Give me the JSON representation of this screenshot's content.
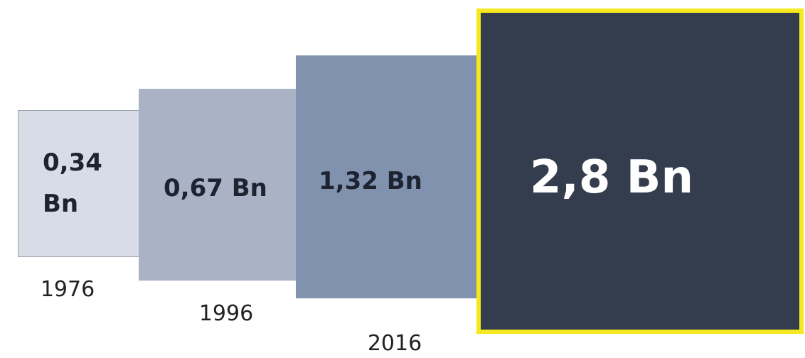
{
  "items": [
    {
      "label": "0,34 Bn",
      "year": "1976"
    },
    {
      "label": "0,67 Bn",
      "year": "1996"
    },
    {
      "label": "1,32 Bn",
      "year": "2016"
    },
    {
      "label": "2,8 Bn"
    }
  ]
}
